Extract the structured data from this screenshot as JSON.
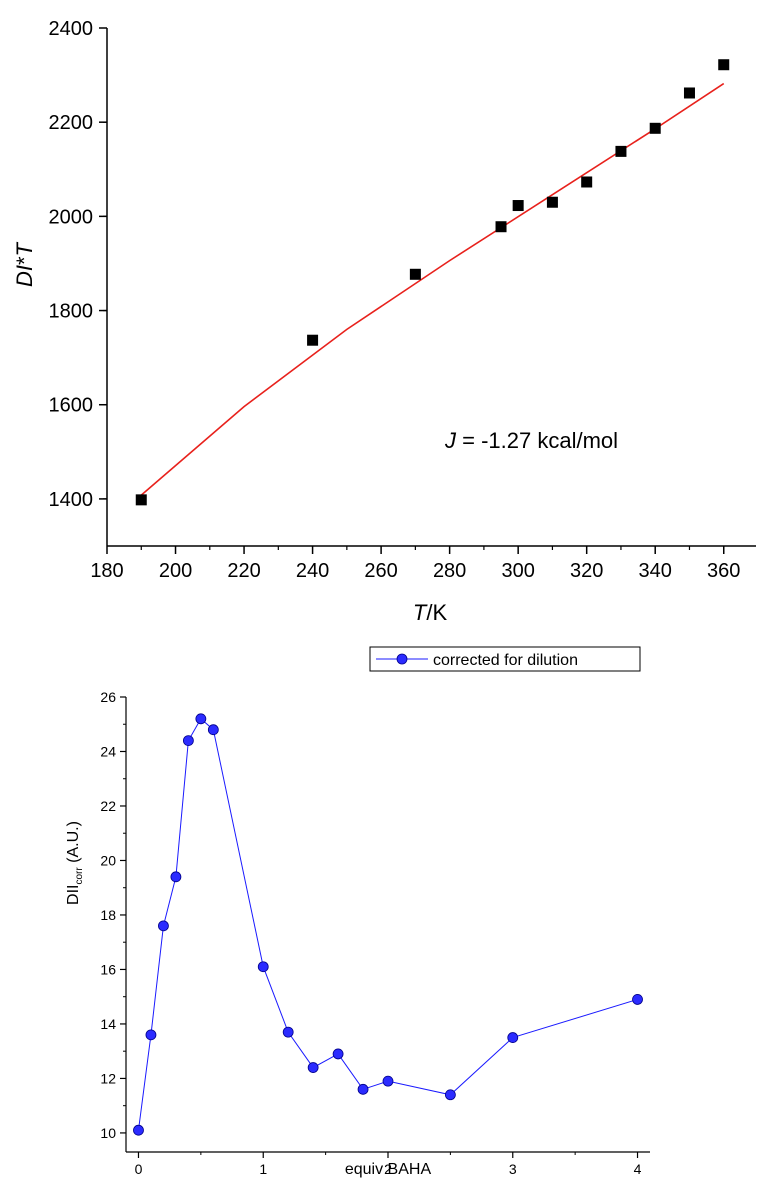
{
  "chart_data": [
    {
      "type": "scatter",
      "xlabel_italic": "T",
      "xlabel_rest": "/K",
      "ylabel_part1": "DI",
      "ylabel_part2": "*",
      "ylabel_part3": "T",
      "xlim": [
        180,
        370
      ],
      "ylim": [
        1300,
        2400
      ],
      "xticks": [
        180,
        200,
        220,
        240,
        260,
        280,
        300,
        320,
        340,
        360
      ],
      "yticks": [
        1400,
        1600,
        1800,
        2000,
        2200,
        2400
      ],
      "annotation_italic": "J",
      "annotation_rest": " = -1.27 kcal/mol",
      "points": {
        "x": [
          190,
          240,
          270,
          295,
          300,
          310,
          320,
          330,
          340,
          350,
          360
        ],
        "y": [
          1398,
          1737,
          1877,
          1978,
          2023,
          2030,
          2073,
          2138,
          2187,
          2262,
          2322
        ]
      },
      "fit_line": {
        "color": "#e8211c",
        "x": [
          190,
          220,
          250,
          280,
          310,
          340,
          360
        ],
        "y": [
          1408,
          1596,
          1760,
          1906,
          2046,
          2186,
          2282
        ]
      },
      "marker_color": "#000000"
    },
    {
      "type": "line",
      "xlabel": "equiv BAHA",
      "ylabel_main": "DII",
      "ylabel_sub": "corr",
      "ylabel_unit": " (A.U.)",
      "xlim": [
        -0.1,
        4.1
      ],
      "ylim": [
        9.3,
        26
      ],
      "xticks": [
        0,
        1,
        2,
        3,
        4
      ],
      "yticks": [
        10,
        12,
        14,
        16,
        18,
        20,
        22,
        24,
        26
      ],
      "series": [
        {
          "name": "corrected for dilution",
          "color": "#1a1aff",
          "x": [
            0,
            0.1,
            0.2,
            0.3,
            0.4,
            0.5,
            0.6,
            1.0,
            1.2,
            1.4,
            1.6,
            1.8,
            2.0,
            2.5,
            3.0,
            4.0
          ],
          "y": [
            10.1,
            13.6,
            17.6,
            19.4,
            24.4,
            25.2,
            24.8,
            16.1,
            13.7,
            12.4,
            12.9,
            11.6,
            11.9,
            11.4,
            13.5,
            14.9
          ]
        }
      ]
    }
  ]
}
